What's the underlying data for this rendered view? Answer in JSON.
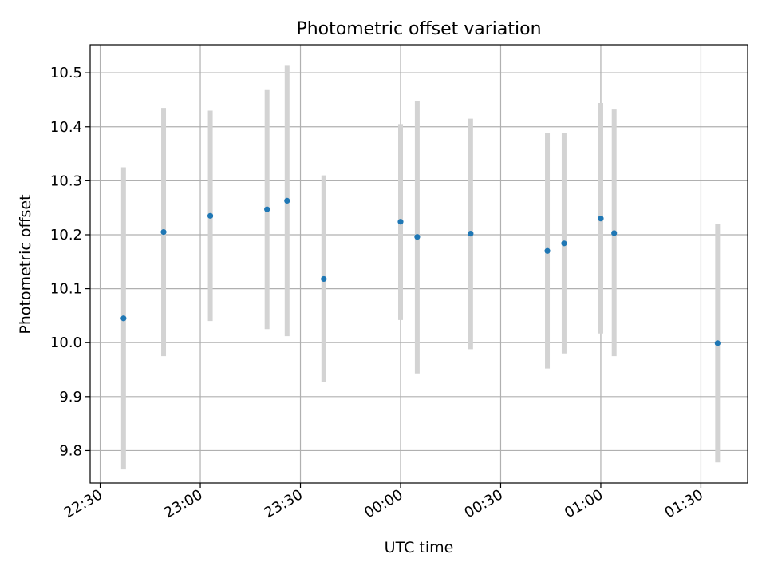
{
  "chart_data": {
    "type": "scatter",
    "title": "Photometric offset variation",
    "xlabel": "UTC time",
    "ylabel": "Photometric offset",
    "x_ticks": [
      "22:30",
      "23:00",
      "23:30",
      "00:00",
      "00:30",
      "01:00",
      "01:30"
    ],
    "y_ticks": [
      "9.8",
      "9.9",
      "10.0",
      "10.1",
      "10.2",
      "10.3",
      "10.4",
      "10.5"
    ],
    "xlim": [
      "22:27",
      "01:44"
    ],
    "ylim": [
      9.74,
      10.552
    ],
    "grid": true,
    "legend": "none",
    "series": [
      {
        "points": [
          {
            "x": "22:37",
            "y": 10.045,
            "ylow": 9.765,
            "yhigh": 10.325
          },
          {
            "x": "22:49",
            "y": 10.205,
            "ylow": 9.975,
            "yhigh": 10.435
          },
          {
            "x": "23:03",
            "y": 10.235,
            "ylow": 10.04,
            "yhigh": 10.43
          },
          {
            "x": "23:20",
            "y": 10.247,
            "ylow": 10.025,
            "yhigh": 10.468
          },
          {
            "x": "23:26",
            "y": 10.263,
            "ylow": 10.012,
            "yhigh": 10.513
          },
          {
            "x": "23:37",
            "y": 10.118,
            "ylow": 9.927,
            "yhigh": 10.31
          },
          {
            "x": "00:00",
            "y": 10.224,
            "ylow": 10.042,
            "yhigh": 10.405
          },
          {
            "x": "00:05",
            "y": 10.196,
            "ylow": 9.943,
            "yhigh": 10.448
          },
          {
            "x": "00:21",
            "y": 10.202,
            "ylow": 9.988,
            "yhigh": 10.415
          },
          {
            "x": "00:44",
            "y": 10.17,
            "ylow": 9.952,
            "yhigh": 10.388
          },
          {
            "x": "00:49",
            "y": 10.184,
            "ylow": 9.98,
            "yhigh": 10.389
          },
          {
            "x": "01:00",
            "y": 10.23,
            "ylow": 10.017,
            "yhigh": 10.444
          },
          {
            "x": "01:04",
            "y": 10.203,
            "ylow": 9.975,
            "yhigh": 10.432
          },
          {
            "x": "01:35",
            "y": 9.999,
            "ylow": 9.778,
            "yhigh": 10.22
          }
        ]
      }
    ],
    "colors": {
      "marker": "#1f77b4",
      "errorbar": "#d3d3d3",
      "grid": "#b0b0b0",
      "axes": "#000000"
    }
  }
}
